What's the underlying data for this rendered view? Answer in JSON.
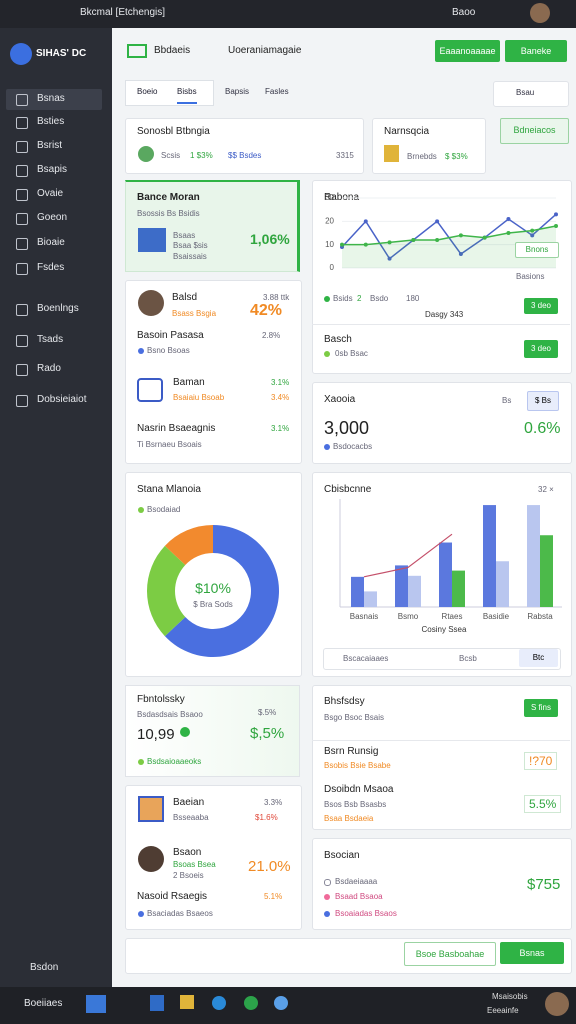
{
  "status_bar": {
    "title": "Bkcmal [Etchengis]",
    "time": "Baoo"
  },
  "sidebar": {
    "logo": "SIHAS' DC",
    "menu": [
      "Bsnas",
      "Bsties",
      "Bsrist",
      "Bsapis",
      "Ovaie",
      "Goeon",
      "Bioaie",
      "Fsdes",
      "Boenlngs",
      "Tsads",
      "Rado",
      "Dobsieiaiot"
    ],
    "footer": "Bsdon"
  },
  "taskbar": {
    "start": "Boeiiaes",
    "tray": [
      "Msaisobis",
      "Eeeainfe"
    ]
  },
  "toolbar": {
    "title": "Bbdaeis",
    "search": "Uoeraniamagaie",
    "buttons": [
      "Eaaanoaaaae",
      "Baneke"
    ]
  },
  "tabs": {
    "items": [
      "Boeio",
      "Bisbs",
      "Bapsis",
      "Fasles"
    ],
    "search": "Bsau"
  },
  "summary": {
    "cards": [
      {
        "title": "Sonosbl Btbngia",
        "label": "Scsis",
        "value": "1 $3%",
        "note": "$$ Bsdes",
        "count": "3315"
      },
      {
        "title": "Narnsqcia",
        "label": "Brnebds",
        "value": "$ $3%"
      }
    ],
    "button": "Bdneiacos"
  },
  "highlight": {
    "title": "Bance Moran",
    "subtitle": "Bsossis Bs Bsidis",
    "lines": [
      "Bsaas",
      "Bsaa $sis",
      "Bsaissais"
    ],
    "value": "1,06%"
  },
  "team": {
    "name": "Balsd",
    "meta": "3.88 ttk",
    "role": "Bsass Bsgia",
    "value": "42%",
    "row_title": "Basoin Pasasa",
    "row_value": "2.8%",
    "row_note": "Bsno Bsoas",
    "brand": "Baman",
    "brand_value": "3.1%",
    "brand_note": "Bsaiaiu Bsoab",
    "brand_note_value": "3.4%",
    "footer_title": "Nasrin Bsaeagnis",
    "footer_value": "3.1%",
    "footer_note": "Ti Bsrnaeu Bsoais"
  },
  "line_panel": {
    "tag": "Bnons",
    "tag_note": "Basions",
    "legend": [
      "Bsids",
      "2",
      "Bsdo",
      "180"
    ],
    "button": "3 deo",
    "caption": "Dasgy 343",
    "row_title": "Basch",
    "row_note": "0sb Bsac",
    "row_button": "3 deo"
  },
  "kpi": {
    "title": "Xaooia",
    "unit": "Bs",
    "button": "$ Bs",
    "value": "3,000",
    "change": "0.6%",
    "note": "Bsdocacbs"
  },
  "donut_panel": {
    "legend": "Bsodaiad",
    "center": "$10%",
    "center_note": "$ Bra Sods"
  },
  "bar_panel": {
    "badge": "32 ×",
    "search": "Bscacaiaaes",
    "search_hint": "Bcsb",
    "search_button": "Btc"
  },
  "balance": {
    "title": "Fbntolssky",
    "subtitle": "Bsdasdsais Bsaoo",
    "value": "10,99",
    "side": "$.5%",
    "change": "$,5%",
    "note": "Bsdsaioaaeoks"
  },
  "history": {
    "title": "Bhsfsdsy",
    "button": "S fins",
    "subtitle": "Bsgo Bsoc Bsais",
    "rows": [
      {
        "title": "Bsrn Runsig",
        "value": "!?70",
        "note": "Bsobis Bsie Bsabe"
      },
      {
        "title": "Dsoibdn Msaoa",
        "value": "5.5%",
        "note": "Bsos Bsb Bsasbs",
        "extra": "Bsaa Bsdaeia"
      }
    ]
  },
  "ranking": {
    "rows": [
      {
        "title": "Baeian",
        "value": "3.3%",
        "note": "Bsseaaba",
        "note_value": "$1.6%"
      },
      {
        "title": "Bsaon",
        "note": "Bsoas Bsea",
        "sub": "2 Bsoeis",
        "value": "21.0%"
      }
    ],
    "footer_title": "Nasoid Rsaegis",
    "footer_value": "5.1%",
    "footer_note": "Bsaciadas Bsaeos"
  },
  "session": {
    "title": "Bsocian",
    "rows": [
      "Bsdaeiaaaa",
      "Bsaad Bsaoa",
      "Bsoaiadas Bsaos"
    ],
    "value": "$755"
  },
  "footer": {
    "buttons": [
      "Bsoe Basboahae",
      "Bsnas"
    ]
  },
  "chart_data": [
    {
      "type": "line",
      "title": "Rabona",
      "categories": [
        null,
        null,
        null,
        null,
        null,
        null,
        null,
        null,
        null,
        null
      ],
      "ylim": [
        0,
        30
      ],
      "yticks": [
        0,
        10,
        20,
        30
      ],
      "grid": true,
      "series": [
        {
          "color": "#4a63c8",
          "values": [
            9,
            20,
            4,
            12,
            20,
            6,
            13,
            21,
            14,
            23
          ]
        },
        {
          "color": "#3fb54a",
          "values": [
            10,
            10,
            11,
            12,
            12,
            14,
            13,
            15,
            16,
            18
          ],
          "area": true
        }
      ]
    },
    {
      "type": "pie",
      "title": "Stana Mlanoia",
      "values": [
        63,
        24,
        13
      ],
      "colors": [
        "#4a6fe0",
        "#7ccc44",
        "#f28a2e"
      ]
    },
    {
      "type": "bar",
      "title": "Cbisbcnne",
      "x_label": "Cosiny Ssea",
      "categories": [
        "Basnais",
        "Bsmo",
        "Rtaes",
        "Basidie",
        "Rabsta"
      ],
      "ylim": [
        0,
        100
      ],
      "series": [
        {
          "color": "#5b78de",
          "values": [
            29,
            40,
            62,
            98,
            null
          ]
        },
        {
          "color": "#b9c6ef",
          "values": [
            15,
            30,
            null,
            44,
            98
          ]
        },
        {
          "color": "#4cba4a",
          "values": [
            null,
            null,
            35,
            null,
            69
          ]
        },
        {
          "type": "line",
          "color": "#c4506a",
          "values": [
            29,
            38,
            70,
            null,
            null
          ]
        }
      ]
    }
  ]
}
